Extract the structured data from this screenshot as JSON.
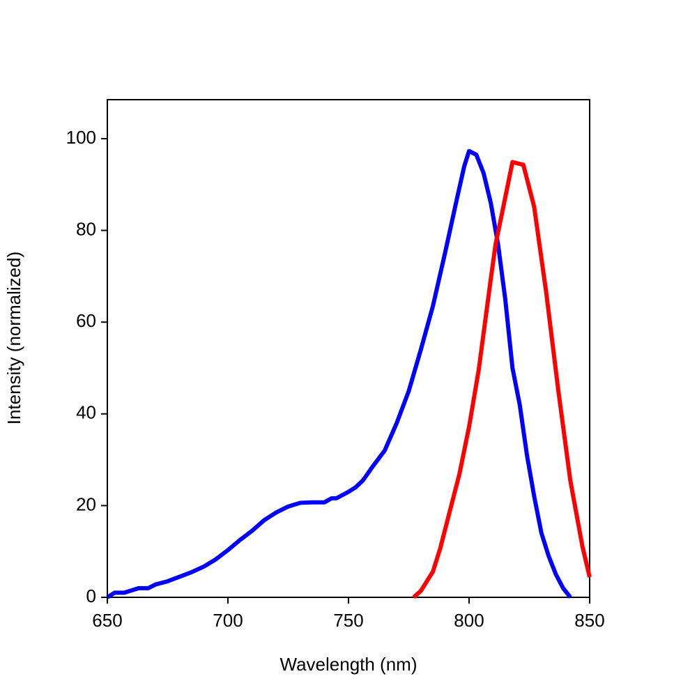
{
  "chart_data": {
    "type": "line",
    "x_label": "Wavelength (nm)",
    "y_label": "Intensity (normalized)",
    "xlim": [
      650,
      850
    ],
    "ylim": [
      0,
      108.5
    ],
    "xticks": [
      650,
      700,
      750,
      800,
      850
    ],
    "yticks": [
      0,
      20,
      40,
      60,
      80,
      100
    ],
    "grid": false,
    "series": [
      {
        "color": "#0000ff",
        "x": [
          650,
          653,
          657,
          660,
          663,
          667,
          670,
          675,
          680,
          685,
          690,
          695,
          700,
          705,
          710,
          715,
          720,
          725,
          730,
          735,
          740,
          743,
          745,
          750,
          753,
          756,
          760,
          765,
          770,
          775,
          780,
          785,
          790,
          795,
          798,
          800,
          803,
          806,
          809,
          812,
          815,
          818,
          821,
          824,
          827,
          830,
          833,
          836,
          839,
          842
        ],
        "values": [
          0,
          1,
          1,
          1.5,
          2,
          2,
          2.8,
          3.5,
          4.5,
          5.5,
          6.7,
          8.3,
          10.3,
          12.5,
          14.5,
          16.8,
          18.5,
          19.8,
          20.6,
          20.7,
          20.7,
          21.6,
          21.6,
          23,
          24,
          25.5,
          28.5,
          32,
          38,
          45,
          54,
          63.5,
          75,
          87,
          94,
          97.3,
          96.5,
          92.5,
          86,
          77,
          65,
          50,
          42,
          31,
          22,
          14,
          9,
          5,
          2,
          0
        ]
      },
      {
        "color": "#ff0000",
        "x": [
          777,
          780,
          785,
          788,
          793,
          796,
          800,
          804,
          809,
          811,
          814,
          818,
          822.5,
          827,
          832,
          837,
          842,
          847,
          850
        ],
        "values": [
          0,
          1.4,
          5.6,
          10.6,
          20.8,
          26.9,
          37.2,
          49.6,
          69.4,
          77,
          84.6,
          94.9,
          94.3,
          85.1,
          66.4,
          45.1,
          25.4,
          11.1,
          4.4
        ]
      }
    ]
  }
}
